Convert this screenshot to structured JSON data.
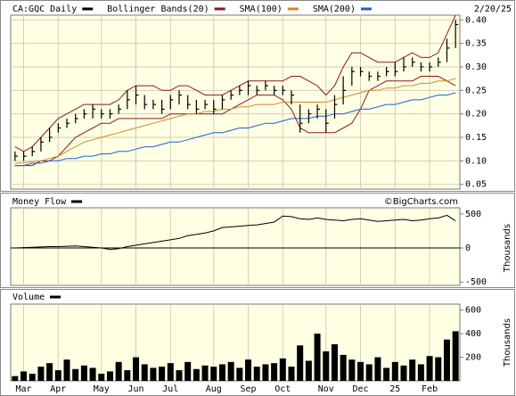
{
  "chart_data": [
    {
      "type": "hlc",
      "name": "CA:GQC Daily",
      "color": "#000000",
      "date": "2/20/25",
      "high": [
        0.12,
        0.12,
        0.13,
        0.15,
        0.17,
        0.18,
        0.19,
        0.2,
        0.21,
        0.22,
        0.21,
        0.21,
        0.22,
        0.25,
        0.26,
        0.24,
        0.23,
        0.23,
        0.24,
        0.25,
        0.24,
        0.23,
        0.23,
        0.23,
        0.24,
        0.25,
        0.26,
        0.27,
        0.26,
        0.27,
        0.26,
        0.26,
        0.25,
        0.22,
        0.21,
        0.22,
        0.21,
        0.24,
        0.28,
        0.3,
        0.3,
        0.29,
        0.29,
        0.3,
        0.31,
        0.32,
        0.32,
        0.31,
        0.31,
        0.32,
        0.36,
        0.4
      ],
      "low": [
        0.1,
        0.1,
        0.11,
        0.12,
        0.14,
        0.16,
        0.17,
        0.18,
        0.19,
        0.19,
        0.19,
        0.19,
        0.2,
        0.21,
        0.22,
        0.21,
        0.21,
        0.2,
        0.21,
        0.22,
        0.21,
        0.2,
        0.21,
        0.2,
        0.21,
        0.23,
        0.24,
        0.24,
        0.24,
        0.25,
        0.24,
        0.24,
        0.22,
        0.16,
        0.18,
        0.19,
        0.16,
        0.19,
        0.22,
        0.26,
        0.28,
        0.27,
        0.27,
        0.28,
        0.28,
        0.29,
        0.3,
        0.29,
        0.29,
        0.3,
        0.31,
        0.34
      ],
      "close": [
        0.11,
        0.11,
        0.12,
        0.14,
        0.15,
        0.17,
        0.18,
        0.19,
        0.2,
        0.21,
        0.2,
        0.2,
        0.21,
        0.23,
        0.24,
        0.22,
        0.22,
        0.21,
        0.23,
        0.24,
        0.22,
        0.21,
        0.22,
        0.21,
        0.23,
        0.24,
        0.25,
        0.26,
        0.25,
        0.26,
        0.25,
        0.25,
        0.24,
        0.18,
        0.2,
        0.21,
        0.18,
        0.22,
        0.25,
        0.29,
        0.29,
        0.28,
        0.28,
        0.29,
        0.29,
        0.3,
        0.31,
        0.3,
        0.3,
        0.31,
        0.34,
        0.39
      ],
      "series": [
        {
          "name": "Bollinger Bands(20)",
          "color": "#8b1a1a",
          "upper": [
            0.13,
            0.12,
            0.13,
            0.15,
            0.17,
            0.19,
            0.2,
            0.21,
            0.22,
            0.22,
            0.22,
            0.22,
            0.23,
            0.25,
            0.26,
            0.26,
            0.26,
            0.25,
            0.25,
            0.26,
            0.26,
            0.25,
            0.24,
            0.24,
            0.24,
            0.25,
            0.26,
            0.27,
            0.27,
            0.27,
            0.27,
            0.27,
            0.28,
            0.28,
            0.27,
            0.26,
            0.24,
            0.26,
            0.3,
            0.33,
            0.33,
            0.32,
            0.31,
            0.31,
            0.31,
            0.32,
            0.33,
            0.32,
            0.32,
            0.33,
            0.37,
            0.41
          ],
          "lower": [
            0.09,
            0.09,
            0.09,
            0.1,
            0.1,
            0.11,
            0.13,
            0.15,
            0.16,
            0.17,
            0.18,
            0.18,
            0.19,
            0.19,
            0.19,
            0.19,
            0.19,
            0.19,
            0.2,
            0.2,
            0.2,
            0.2,
            0.2,
            0.2,
            0.2,
            0.21,
            0.22,
            0.23,
            0.24,
            0.24,
            0.24,
            0.23,
            0.21,
            0.17,
            0.16,
            0.16,
            0.16,
            0.16,
            0.17,
            0.18,
            0.21,
            0.25,
            0.26,
            0.27,
            0.27,
            0.27,
            0.27,
            0.28,
            0.28,
            0.28,
            0.27,
            0.26
          ]
        },
        {
          "name": "SMA(100)",
          "color": "#d08a24",
          "values": [
            0.095,
            0.096,
            0.098,
            0.1,
            0.105,
            0.11,
            0.12,
            0.13,
            0.14,
            0.145,
            0.15,
            0.155,
            0.16,
            0.165,
            0.17,
            0.175,
            0.18,
            0.185,
            0.19,
            0.195,
            0.2,
            0.2,
            0.205,
            0.205,
            0.21,
            0.21,
            0.215,
            0.215,
            0.22,
            0.22,
            0.22,
            0.225,
            0.225,
            0.225,
            0.225,
            0.225,
            0.225,
            0.23,
            0.235,
            0.24,
            0.245,
            0.25,
            0.25,
            0.255,
            0.255,
            0.26,
            0.26,
            0.265,
            0.265,
            0.27,
            0.27,
            0.275
          ]
        },
        {
          "name": "SMA(200)",
          "color": "#1c5fd4",
          "values": [
            0.09,
            0.09,
            0.095,
            0.095,
            0.1,
            0.1,
            0.105,
            0.105,
            0.11,
            0.11,
            0.115,
            0.115,
            0.12,
            0.12,
            0.125,
            0.13,
            0.13,
            0.135,
            0.14,
            0.14,
            0.145,
            0.15,
            0.155,
            0.16,
            0.16,
            0.165,
            0.17,
            0.17,
            0.175,
            0.18,
            0.18,
            0.185,
            0.19,
            0.19,
            0.19,
            0.195,
            0.195,
            0.2,
            0.2,
            0.205,
            0.21,
            0.21,
            0.215,
            0.22,
            0.22,
            0.225,
            0.23,
            0.23,
            0.235,
            0.24,
            0.24,
            0.245
          ]
        }
      ],
      "ylim": [
        0.04,
        0.41
      ],
      "yticks": [
        0.05,
        {
          "value": 0.1,
          "label": "0.10"
        },
        0.15,
        {
          "value": 0.2,
          "label": "0.20"
        },
        0.25,
        {
          "value": 0.3,
          "label": "0.30"
        },
        0.35,
        {
          "value": 0.4,
          "label": "0.40"
        }
      ],
      "grid": true
    },
    {
      "type": "line",
      "title": "Money Flow",
      "ylabel": "Thousands",
      "annotation": "©BigCharts.com",
      "color": "#000000",
      "values": [
        0,
        5,
        10,
        15,
        20,
        20,
        25,
        30,
        20,
        10,
        0,
        -20,
        -10,
        20,
        40,
        60,
        80,
        100,
        120,
        140,
        180,
        200,
        220,
        250,
        300,
        310,
        320,
        330,
        340,
        360,
        380,
        470,
        460,
        430,
        420,
        440,
        420,
        410,
        400,
        420,
        430,
        410,
        390,
        400,
        410,
        420,
        400,
        410,
        430,
        440,
        480,
        400
      ],
      "ylim": [
        -550,
        590
      ],
      "yticks": [
        -500,
        0,
        500
      ],
      "grid": false
    },
    {
      "type": "bar",
      "title": "Volume",
      "ylabel": "Thousands",
      "color": "#000000",
      "categories": [
        null,
        "Mar",
        null,
        null,
        null,
        "Apr",
        null,
        null,
        null,
        null,
        "May",
        null,
        null,
        null,
        "Jun",
        null,
        null,
        null,
        "Jul",
        null,
        null,
        null,
        null,
        "Aug",
        null,
        null,
        null,
        "Sep",
        null,
        null,
        null,
        "Oct",
        null,
        null,
        null,
        null,
        "Nov",
        null,
        null,
        null,
        "Dec",
        null,
        null,
        null,
        "25",
        null,
        null,
        null,
        "Feb",
        null,
        null,
        null
      ],
      "values": [
        40,
        80,
        60,
        120,
        150,
        90,
        180,
        100,
        130,
        110,
        60,
        80,
        160,
        90,
        200,
        140,
        110,
        120,
        150,
        90,
        160,
        100,
        130,
        120,
        140,
        160,
        110,
        180,
        120,
        140,
        150,
        190,
        120,
        300,
        170,
        400,
        250,
        310,
        220,
        180,
        160,
        140,
        200,
        110,
        160,
        130,
        180,
        140,
        210,
        200,
        350,
        420
      ],
      "ylim": [
        0,
        650
      ],
      "yticks": [
        200,
        400,
        600
      ],
      "grid": false
    }
  ]
}
